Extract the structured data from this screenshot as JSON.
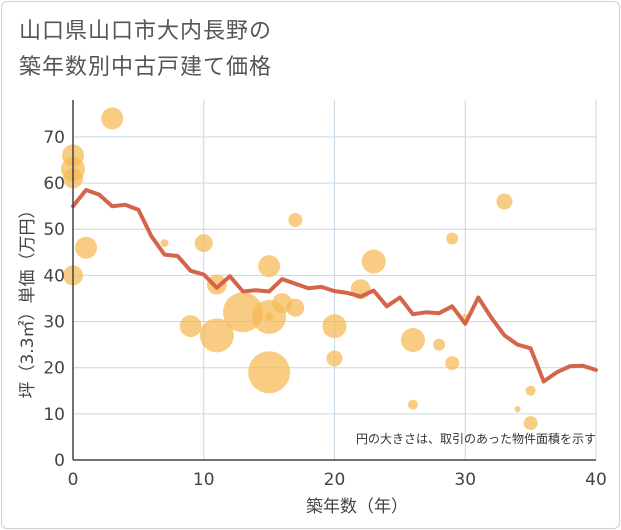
{
  "title_line1": "山口県山口市大内長野の",
  "title_line2": "築年数別中古戸建て価格",
  "chart_data": {
    "type": "scatter",
    "title": "山口県山口市大内長野の築年数別中古戸建て価格",
    "xlabel": "築年数（年）",
    "ylabel": "坪（3.3㎡）単価（万円）",
    "xlim": [
      0,
      40
    ],
    "ylim": [
      0,
      78
    ],
    "xticks": [
      0,
      10,
      20,
      30,
      40
    ],
    "yticks": [
      0,
      10,
      20,
      30,
      40,
      50,
      60,
      70
    ],
    "grid": true,
    "note": "円の大きさは、取引のあった物件面積を示す",
    "colors": {
      "bubble": "#f5b84e",
      "line": "#d4644a",
      "grid": "#c9d6e3",
      "axis": "#444444"
    },
    "scatter": [
      {
        "x": 0,
        "y": 66,
        "size": 11
      },
      {
        "x": 0,
        "y": 63,
        "size": 12
      },
      {
        "x": 0,
        "y": 61,
        "size": 10
      },
      {
        "x": 0,
        "y": 40,
        "size": 10
      },
      {
        "x": 1,
        "y": 46,
        "size": 11
      },
      {
        "x": 3,
        "y": 74,
        "size": 11
      },
      {
        "x": 7,
        "y": 47,
        "size": 4
      },
      {
        "x": 9,
        "y": 29,
        "size": 11
      },
      {
        "x": 10,
        "y": 47,
        "size": 9
      },
      {
        "x": 11,
        "y": 38,
        "size": 10
      },
      {
        "x": 11,
        "y": 27,
        "size": 17
      },
      {
        "x": 13,
        "y": 32,
        "size": 20
      },
      {
        "x": 15,
        "y": 42,
        "size": 11
      },
      {
        "x": 15,
        "y": 31,
        "size": 17
      },
      {
        "x": 15,
        "y": 31,
        "size": 4
      },
      {
        "x": 15,
        "y": 19,
        "size": 21
      },
      {
        "x": 16,
        "y": 34,
        "size": 10
      },
      {
        "x": 17,
        "y": 52,
        "size": 7
      },
      {
        "x": 17,
        "y": 33,
        "size": 9
      },
      {
        "x": 20,
        "y": 29,
        "size": 12
      },
      {
        "x": 20,
        "y": 22,
        "size": 8
      },
      {
        "x": 22,
        "y": 37,
        "size": 10
      },
      {
        "x": 23,
        "y": 43,
        "size": 12
      },
      {
        "x": 26,
        "y": 26,
        "size": 12
      },
      {
        "x": 26,
        "y": 12,
        "size": 5
      },
      {
        "x": 28,
        "y": 25,
        "size": 6
      },
      {
        "x": 29,
        "y": 48,
        "size": 6
      },
      {
        "x": 29,
        "y": 21,
        "size": 7
      },
      {
        "x": 30,
        "y": 31,
        "size": 3
      },
      {
        "x": 33,
        "y": 56,
        "size": 8
      },
      {
        "x": 34,
        "y": 11,
        "size": 3
      },
      {
        "x": 35,
        "y": 15,
        "size": 5
      },
      {
        "x": 35,
        "y": 8,
        "size": 7
      }
    ],
    "line": {
      "x": [
        0,
        1,
        2,
        3,
        4,
        5,
        6,
        7,
        8,
        9,
        10,
        11,
        12,
        13,
        14,
        15,
        16,
        17,
        18,
        19,
        20,
        21,
        22,
        23,
        24,
        25,
        26,
        27,
        28,
        29,
        30,
        31,
        32,
        33,
        34,
        35,
        36,
        37,
        38,
        39,
        40
      ],
      "y": [
        55,
        58.5,
        57.5,
        55,
        55.3,
        54.2,
        48.5,
        44.5,
        44.2,
        41,
        40.2,
        37.3,
        39.8,
        36.5,
        36.8,
        36.5,
        39.2,
        38.2,
        37.2,
        37.5,
        36.6,
        36.2,
        35.4,
        36.7,
        33.3,
        35.2,
        31.6,
        32,
        31.8,
        33.3,
        29.5,
        35.2,
        30.8,
        27,
        25,
        24.2,
        17,
        19,
        20.3,
        20.4,
        19.5
      ]
    }
  }
}
